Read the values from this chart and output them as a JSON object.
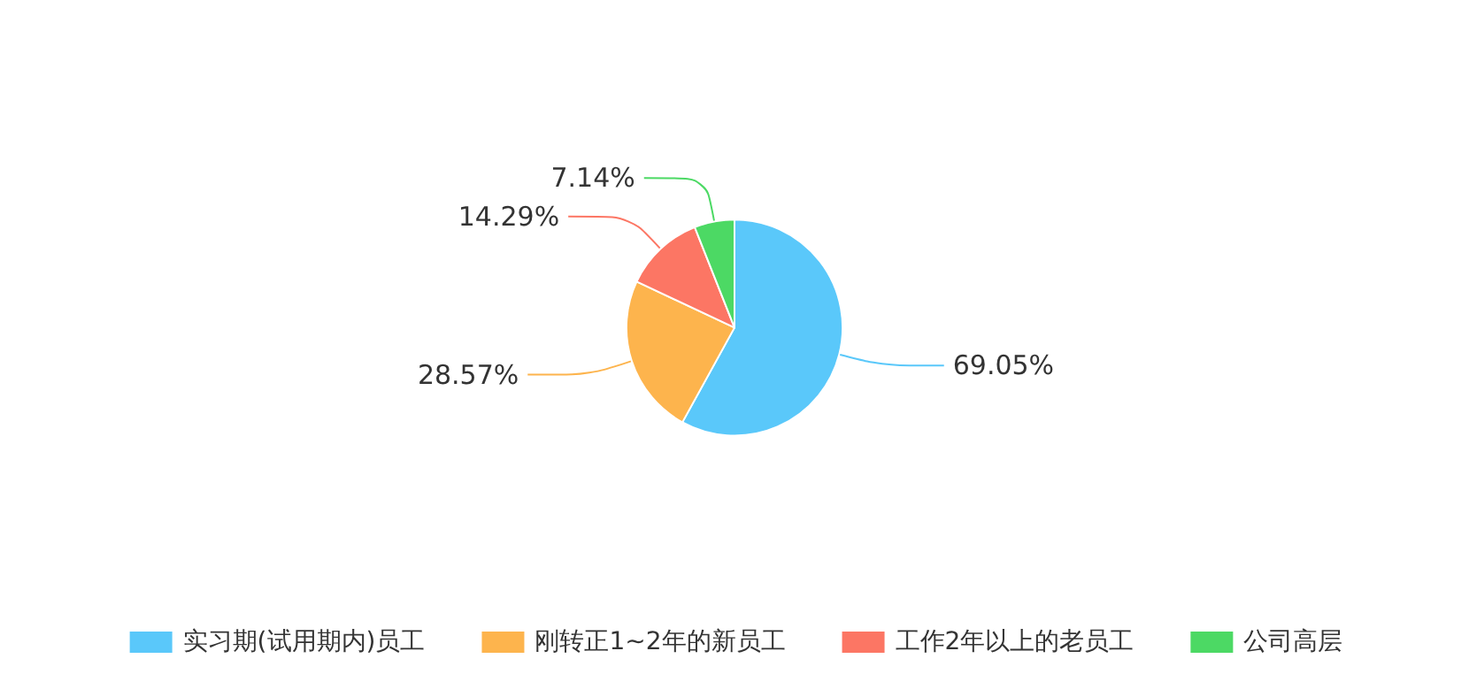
{
  "chart_data": {
    "type": "pie",
    "categories": [
      "实习期(试用期内)员工",
      "刚转正1~2年的新员工",
      "工作2年以上的老员工",
      "公司高层"
    ],
    "values": [
      69.05,
      28.57,
      14.29,
      7.14
    ],
    "value_labels": [
      "69.05%",
      "28.57%",
      "14.29%",
      "7.14%"
    ],
    "colors": [
      "#5ac8fa",
      "#fdb44d",
      "#fc7664",
      "#4cd964"
    ],
    "legend": "bottom"
  }
}
